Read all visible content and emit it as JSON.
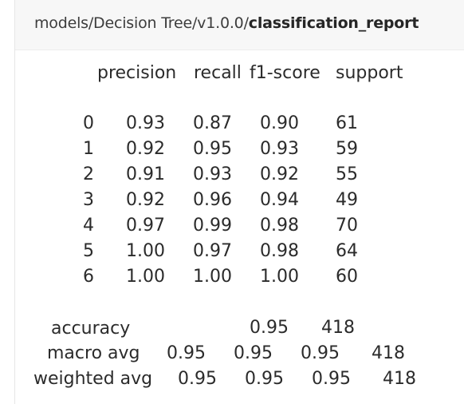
{
  "header": {
    "path_prefix": "models/Decision Tree/v1.0.0/",
    "file_name": "classification_report"
  },
  "report": {
    "columns": [
      "precision",
      "recall",
      "f1-score",
      "support"
    ],
    "rows": [
      {
        "label": "0",
        "precision": "0.93",
        "recall": "0.87",
        "f1": "0.90",
        "support": "61"
      },
      {
        "label": "1",
        "precision": "0.92",
        "recall": "0.95",
        "f1": "0.93",
        "support": "59"
      },
      {
        "label": "2",
        "precision": "0.91",
        "recall": "0.93",
        "f1": "0.92",
        "support": "55"
      },
      {
        "label": "3",
        "precision": "0.92",
        "recall": "0.96",
        "f1": "0.94",
        "support": "49"
      },
      {
        "label": "4",
        "precision": "0.97",
        "recall": "0.99",
        "f1": "0.98",
        "support": "70"
      },
      {
        "label": "5",
        "precision": "1.00",
        "recall": "0.97",
        "f1": "0.98",
        "support": "64"
      },
      {
        "label": "6",
        "precision": "1.00",
        "recall": "1.00",
        "f1": "1.00",
        "support": "60"
      }
    ],
    "accuracy": {
      "label": "accuracy",
      "f1": "0.95",
      "support": "418"
    },
    "macro_avg": {
      "label": "macro avg",
      "precision": "0.95",
      "recall": "0.95",
      "f1": "0.95",
      "support": "418"
    },
    "weighted_avg": {
      "label": "weighted avg",
      "precision": "0.95",
      "recall": "0.95",
      "f1": "0.95",
      "support": "418"
    }
  }
}
